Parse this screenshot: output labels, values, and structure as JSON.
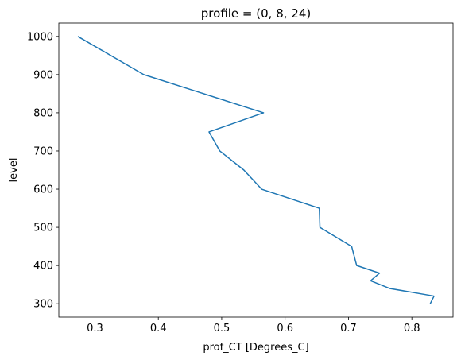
{
  "chart_data": {
    "type": "line",
    "title": "profile = (0, 8, 24)",
    "xlabel": "prof_CT [Degrees_C]",
    "ylabel": "level",
    "xlim": [
      0.243,
      0.865
    ],
    "ylim": [
      265,
      1035
    ],
    "xticks": [
      0.3,
      0.4,
      0.5,
      0.6,
      0.7,
      0.8
    ],
    "yticks": [
      300,
      400,
      500,
      600,
      700,
      800,
      900,
      1000
    ],
    "xtick_labels": [
      "0.3",
      "0.4",
      "0.5",
      "0.6",
      "0.7",
      "0.8"
    ],
    "ytick_labels": [
      "300",
      "400",
      "500",
      "600",
      "700",
      "800",
      "900",
      "1000"
    ],
    "grid": false,
    "series": [
      {
        "color": "#1f77b4",
        "x": [
          0.273,
          0.377,
          0.566,
          0.48,
          0.497,
          0.535,
          0.563,
          0.654,
          0.655,
          0.705,
          0.713,
          0.749,
          0.735,
          0.765,
          0.835,
          0.829
        ],
        "y": [
          1000,
          900,
          800,
          750,
          700,
          650,
          600,
          550,
          500,
          450,
          400,
          380,
          360,
          340,
          320,
          300
        ]
      }
    ]
  }
}
